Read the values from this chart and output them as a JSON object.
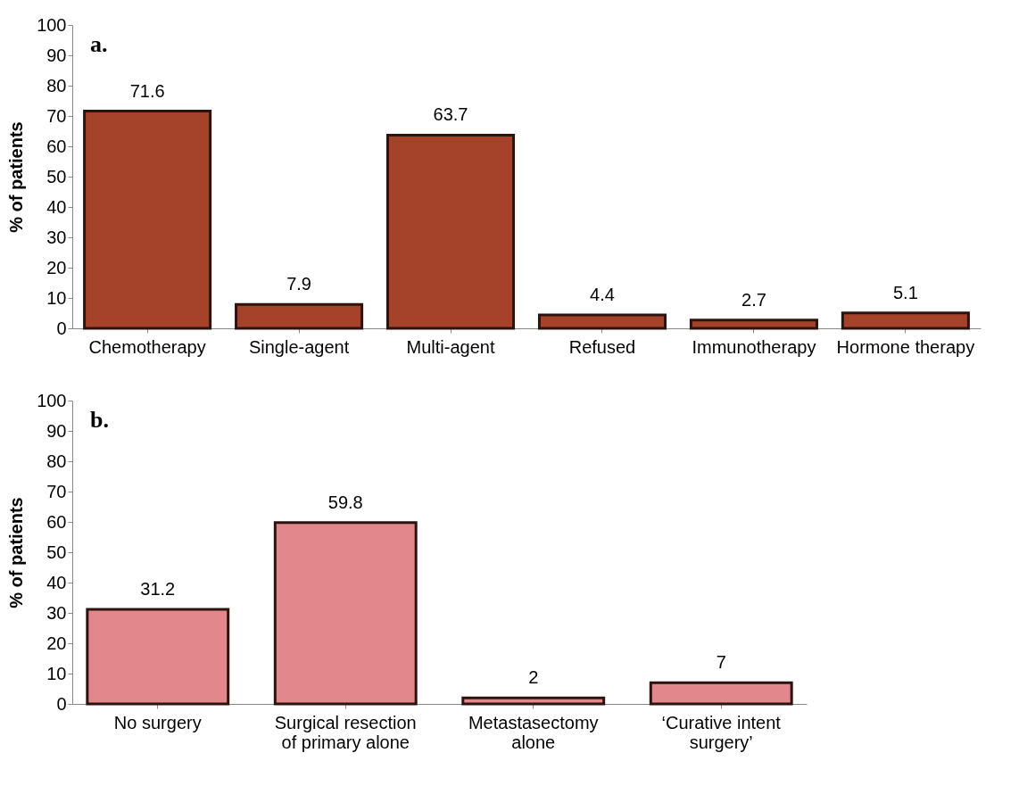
{
  "chart_data": [
    {
      "type": "bar",
      "title": "a.",
      "ylabel": "% of patients",
      "categories": [
        "Chemotherapy",
        "Single-agent",
        "Multi-agent",
        "Refused",
        "Immunotherapy",
        "Hormone therapy"
      ],
      "values": [
        71.6,
        7.9,
        63.7,
        4.4,
        2.7,
        5.1
      ],
      "color": "#a5432a",
      "ylim": [
        0,
        100
      ],
      "yticks": [
        0,
        10,
        20,
        30,
        40,
        50,
        60,
        70,
        80,
        90,
        100
      ],
      "data_labels": true,
      "grid": false
    },
    {
      "type": "bar",
      "title": "b.",
      "ylabel": "% of patients",
      "categories": [
        "No surgery",
        "Surgical resection of primary alone",
        "Metastasectomy alone",
        "‘Curative intent surgery’"
      ],
      "values": [
        31.2,
        59.8,
        2,
        7
      ],
      "color": "#e2878b",
      "ylim": [
        0,
        100
      ],
      "yticks": [
        0,
        10,
        20,
        30,
        40,
        50,
        60,
        70,
        80,
        90,
        100
      ],
      "data_labels": true,
      "grid": false
    }
  ]
}
